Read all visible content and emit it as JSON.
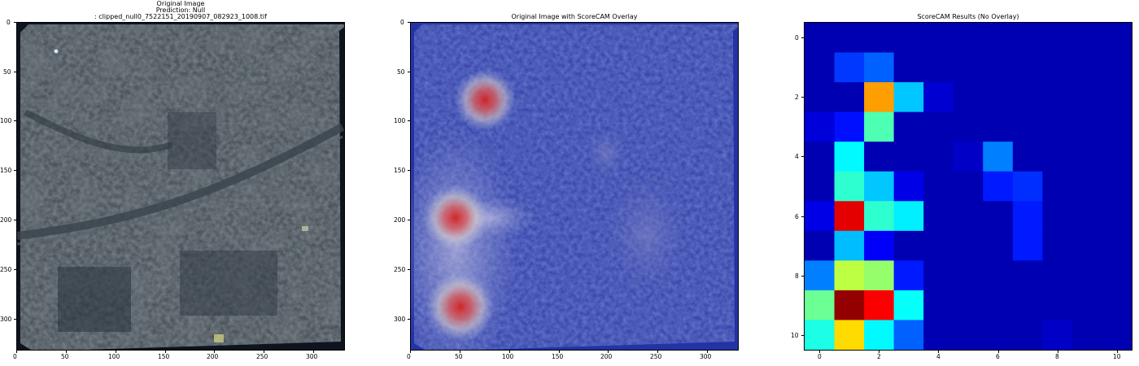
{
  "panels": [
    {
      "title_lines": [
        "Original Image",
        "Prediction: Null",
        ": clipped_null0_7522151_20190907_082923_1008.tif"
      ],
      "xticks": [
        "0",
        "50",
        "100",
        "150",
        "200",
        "250",
        "300"
      ],
      "yticks": [
        "0",
        "50",
        "100",
        "150",
        "200",
        "250",
        "300"
      ]
    },
    {
      "title_lines": [
        "Original Image with ScoreCAM Overlay"
      ],
      "xticks": [
        "0",
        "50",
        "100",
        "150",
        "200",
        "250",
        "300"
      ],
      "yticks": [
        "0",
        "50",
        "100",
        "150",
        "200",
        "250",
        "300"
      ]
    },
    {
      "title_lines": [
        "ScoreCAM Results (No Overlay)"
      ],
      "xticks": [
        "0",
        "2",
        "4",
        "6",
        "8",
        "10"
      ],
      "yticks": [
        "0",
        "2",
        "4",
        "6",
        "8",
        "10"
      ]
    }
  ],
  "image_extent": 332,
  "hotspots_image_units": [
    {
      "x": 75,
      "y": 78,
      "level": 0.9
    },
    {
      "x": 45,
      "y": 197,
      "level": 0.95
    },
    {
      "x": 50,
      "y": 287,
      "level": 1.0
    }
  ],
  "chart_data": {
    "type": "heatmap",
    "title": "ScoreCAM Results (No Overlay)",
    "colormap": "jet",
    "rows": 11,
    "cols": 11,
    "values": [
      [
        0.05,
        0.05,
        0.05,
        0.05,
        0.05,
        0.05,
        0.05,
        0.05,
        0.05,
        0.05,
        0.05
      ],
      [
        0.05,
        0.18,
        0.22,
        0.05,
        0.05,
        0.05,
        0.05,
        0.05,
        0.05,
        0.05,
        0.05
      ],
      [
        0.05,
        0.05,
        0.72,
        0.32,
        0.08,
        0.05,
        0.05,
        0.05,
        0.05,
        0.05,
        0.05
      ],
      [
        0.09,
        0.14,
        0.45,
        0.05,
        0.05,
        0.05,
        0.05,
        0.05,
        0.05,
        0.05,
        0.05
      ],
      [
        0.05,
        0.37,
        0.05,
        0.05,
        0.05,
        0.07,
        0.25,
        0.05,
        0.05,
        0.05,
        0.05
      ],
      [
        0.05,
        0.42,
        0.32,
        0.1,
        0.05,
        0.05,
        0.15,
        0.17,
        0.05,
        0.05,
        0.05
      ],
      [
        0.1,
        0.9,
        0.42,
        0.36,
        0.05,
        0.05,
        0.05,
        0.15,
        0.05,
        0.05,
        0.05
      ],
      [
        0.05,
        0.31,
        0.12,
        0.05,
        0.05,
        0.05,
        0.05,
        0.15,
        0.05,
        0.05,
        0.05
      ],
      [
        0.25,
        0.56,
        0.52,
        0.15,
        0.05,
        0.05,
        0.05,
        0.05,
        0.05,
        0.05,
        0.05
      ],
      [
        0.48,
        0.98,
        0.88,
        0.38,
        0.05,
        0.05,
        0.05,
        0.05,
        0.05,
        0.05,
        0.05
      ],
      [
        0.4,
        0.66,
        0.37,
        0.22,
        0.05,
        0.05,
        0.05,
        0.05,
        0.07,
        0.05,
        0.05
      ]
    ],
    "xlim": [
      -0.5,
      10.5
    ],
    "ylim": [
      10.5,
      -0.5
    ]
  }
}
